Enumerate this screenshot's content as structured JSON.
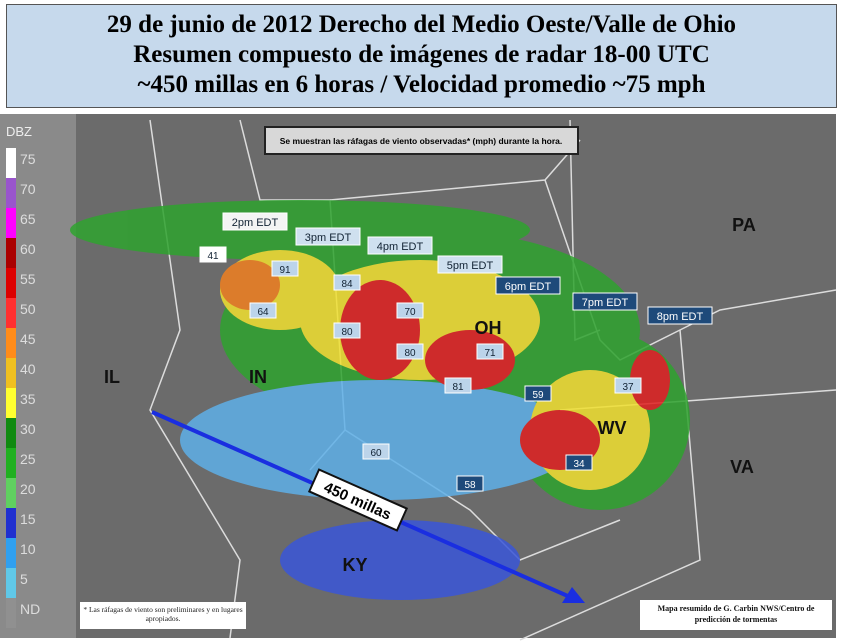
{
  "header": {
    "title_lines": [
      "29 de junio de 2012 Derecho del Medio Oeste/Valle de Ohio",
      "Resumen compuesto de imágenes de radar 18-00 UTC",
      "~450 millas en 6 horas / Velocidad promedio ~75 mph"
    ]
  },
  "legend": {
    "title": "DBZ",
    "labels": [
      75,
      70,
      65,
      60,
      55,
      50,
      45,
      40,
      35,
      30,
      25,
      20,
      15,
      10,
      5,
      "ND"
    ]
  },
  "map": {
    "note": "Se muestran las ráfagas de viento observadas* (mph) durante la hora.",
    "times": [
      "2pm EDT",
      "3pm EDT",
      "4pm EDT",
      "5pm EDT",
      "6pm EDT",
      "7pm EDT",
      "8pm EDT"
    ],
    "gusts": [
      41,
      91,
      64,
      84,
      80,
      70,
      80,
      71,
      81,
      59,
      60,
      58,
      37,
      34
    ],
    "states": [
      "IL",
      "IN",
      "OH",
      "PA",
      "WV",
      "VA",
      "KY"
    ],
    "distance_label": "450 millas",
    "footnote": "* Las ráfagas de viento son preliminares y en lugares apropiados.",
    "credit": "Mapa resumido de G. Carbin NWS/Centro de predicción de tormentas"
  }
}
